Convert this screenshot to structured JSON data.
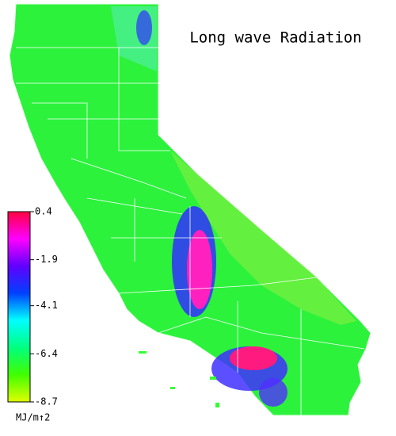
{
  "title": "Long wave Radiation",
  "colorbar": {
    "ticks": [
      0.4,
      -1.9,
      -4.1,
      -6.4,
      -8.7
    ],
    "colors": [
      "#ff0040",
      "#ff00ff",
      "#6000ff",
      "#0040ff",
      "#00ffff",
      "#00ff80",
      "#40ff00",
      "#e0ff00"
    ],
    "unit": "MJ/m↑2"
  }
}
